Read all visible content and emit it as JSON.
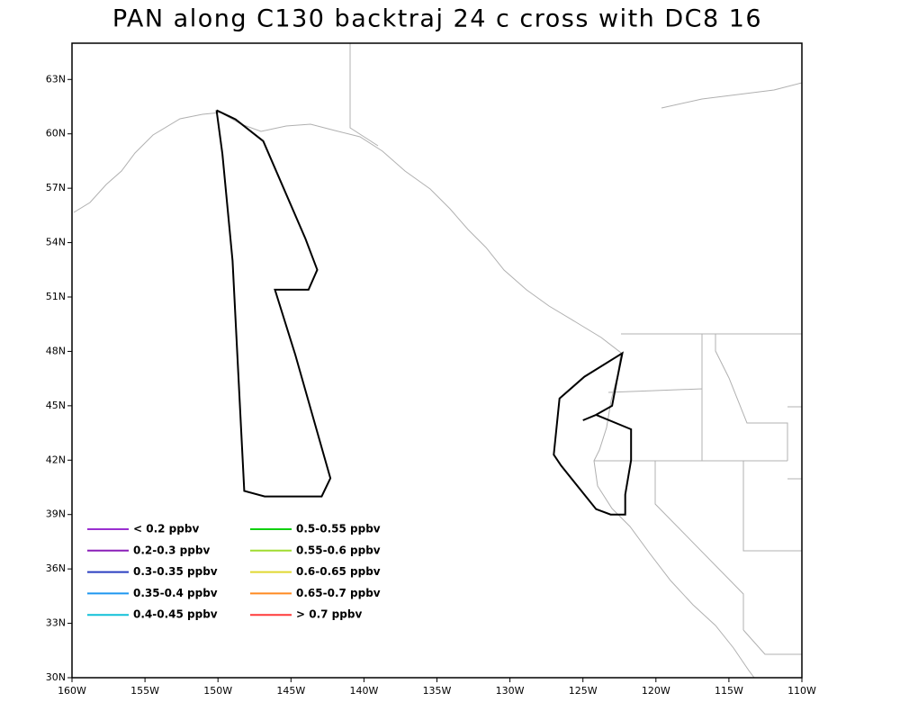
{
  "chart_data": {
    "type": "map",
    "title": "PAN along C130 backtraj 24 c cross with DC8 16",
    "xlim": [
      -160,
      -110
    ],
    "ylim": [
      30,
      65
    ],
    "xticks": [
      {
        "value": -160,
        "label": "160W"
      },
      {
        "value": -155,
        "label": "155W"
      },
      {
        "value": -150,
        "label": "150W"
      },
      {
        "value": -145,
        "label": "145W"
      },
      {
        "value": -140,
        "label": "140W"
      },
      {
        "value": -135,
        "label": "135W"
      },
      {
        "value": -130,
        "label": "130W"
      },
      {
        "value": -125,
        "label": "125W"
      },
      {
        "value": -120,
        "label": "120W"
      },
      {
        "value": -115,
        "label": "115W"
      },
      {
        "value": -110,
        "label": "110W"
      }
    ],
    "yticks": [
      {
        "value": 30,
        "label": "30N"
      },
      {
        "value": 33,
        "label": "33N"
      },
      {
        "value": 36,
        "label": "36N"
      },
      {
        "value": 39,
        "label": "39N"
      },
      {
        "value": 42,
        "label": "42N"
      },
      {
        "value": 45,
        "label": "45N"
      },
      {
        "value": 48,
        "label": "48N"
      },
      {
        "value": 51,
        "label": "51N"
      },
      {
        "value": 54,
        "label": "54N"
      },
      {
        "value": 57,
        "label": "57N"
      },
      {
        "value": 60,
        "label": "60N"
      },
      {
        "value": 63,
        "label": "63N"
      }
    ],
    "series": [
      {
        "color": "#000000",
        "x": [
          -150.1,
          -149.7,
          -149.0,
          -148.2,
          -146.8,
          -142.9,
          -142.3,
          -144.7,
          -146.1,
          -143.8,
          -143.2,
          -144.0,
          -146.9,
          -148.8,
          -150.1
        ],
        "values": [
          61.3,
          58.9,
          53.0,
          40.3,
          40.0,
          40.0,
          41.0,
          47.8,
          51.4,
          51.4,
          52.5,
          54.2,
          59.6,
          60.8,
          61.3
        ]
      },
      {
        "color": "#000000",
        "x": [
          -125.0,
          -124.1,
          -121.7,
          -121.7,
          -122.1,
          -122.1,
          -123.1,
          -124.1,
          -126.5,
          -127.0,
          -126.6,
          -124.9,
          -122.3,
          -122.7,
          -123.0,
          -124.1
        ],
        "values": [
          44.2,
          44.5,
          43.7,
          42.0,
          40.1,
          39.0,
          39.0,
          39.3,
          41.7,
          42.3,
          45.4,
          46.6,
          47.9,
          46.3,
          45.0,
          44.5
        ]
      }
    ],
    "legend": [
      {
        "label": "< 0.2 ppbv",
        "color": "#9a2fd0"
      },
      {
        "label": "0.2-0.3 ppbv",
        "color": "#8a1fb8"
      },
      {
        "label": "0.3-0.35 ppbv",
        "color": "#2a3fc0"
      },
      {
        "label": "0.35-0.4 ppbv",
        "color": "#1e96f0"
      },
      {
        "label": "0.4-0.45 ppbv",
        "color": "#10c0d8"
      },
      {
        "label": "0.5-0.55 ppbv",
        "color": "#10d010"
      },
      {
        "label": "0.55-0.6 ppbv",
        "color": "#a0dc30"
      },
      {
        "label": "0.6-0.65 ppbv",
        "color": "#e0d830"
      },
      {
        "label": "0.65-0.7 ppbv",
        "color": "#ff8a20"
      },
      {
        "label": "> 0.7 ppbv",
        "color": "#ff3a3a"
      }
    ]
  }
}
